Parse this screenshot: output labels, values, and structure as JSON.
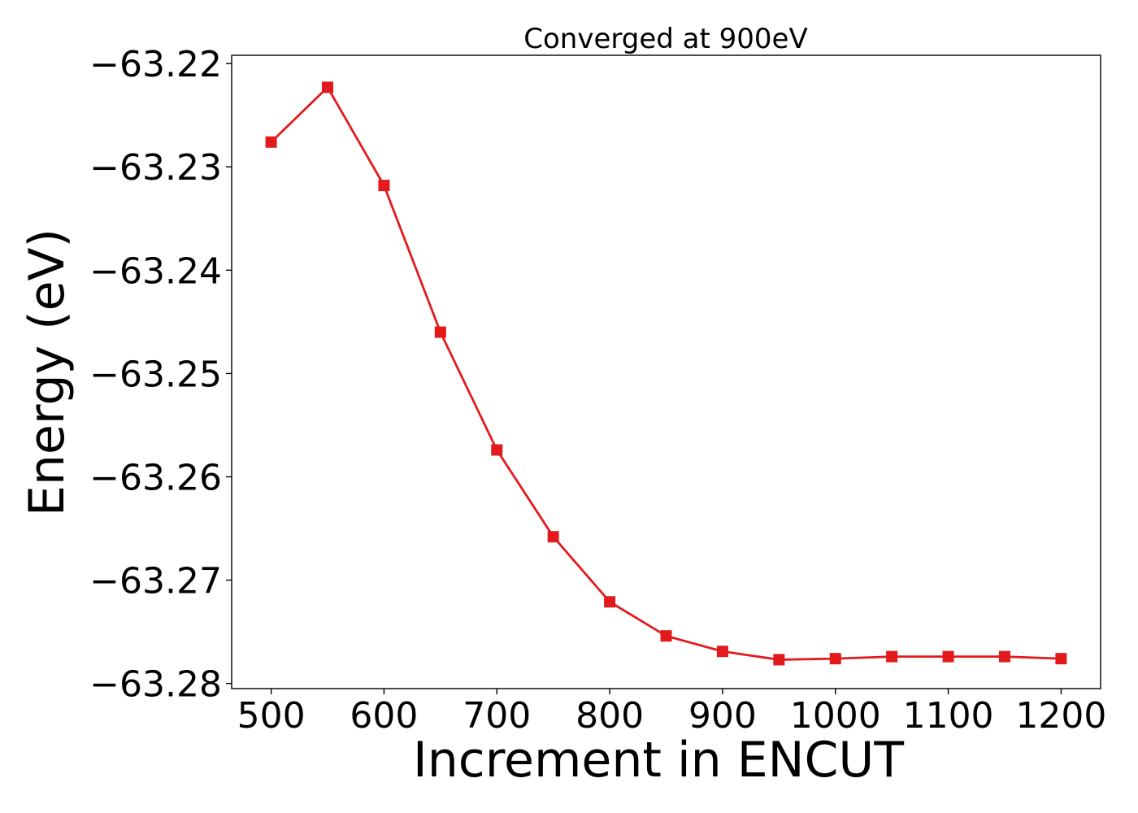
{
  "chart_data": {
    "type": "line",
    "title": "Converged at 900eV",
    "xlabel": "Increment in ENCUT",
    "ylabel": "Energy (eV)",
    "xlim": [
      465,
      1235
    ],
    "ylim": [
      -63.2805,
      -63.2192
    ],
    "xticks": [
      500,
      600,
      700,
      800,
      900,
      1000,
      1100,
      1200
    ],
    "xtick_labels": [
      "500",
      "600",
      "700",
      "800",
      "900",
      "1000",
      "1100",
      "1200"
    ],
    "yticks": [
      -63.22,
      -63.23,
      -63.24,
      -63.25,
      -63.26,
      -63.27,
      -63.28
    ],
    "ytick_labels": [
      "−63.22",
      "−63.23",
      "−63.24",
      "−63.25",
      "−63.26",
      "−63.27",
      "−63.28"
    ],
    "grid": false,
    "series": [
      {
        "color": "#e31a1c",
        "marker": "square",
        "x": [
          500,
          550,
          600,
          650,
          700,
          750,
          800,
          850,
          900,
          950,
          1000,
          1050,
          1100,
          1150,
          1200
        ],
        "y": [
          -63.2276,
          -63.2223,
          -63.2318,
          -63.246,
          -63.2574,
          -63.2658,
          -63.2721,
          -63.2754,
          -63.2769,
          -63.2777,
          -63.2776,
          -63.2774,
          -63.2774,
          -63.2774,
          -63.2776
        ]
      }
    ]
  }
}
